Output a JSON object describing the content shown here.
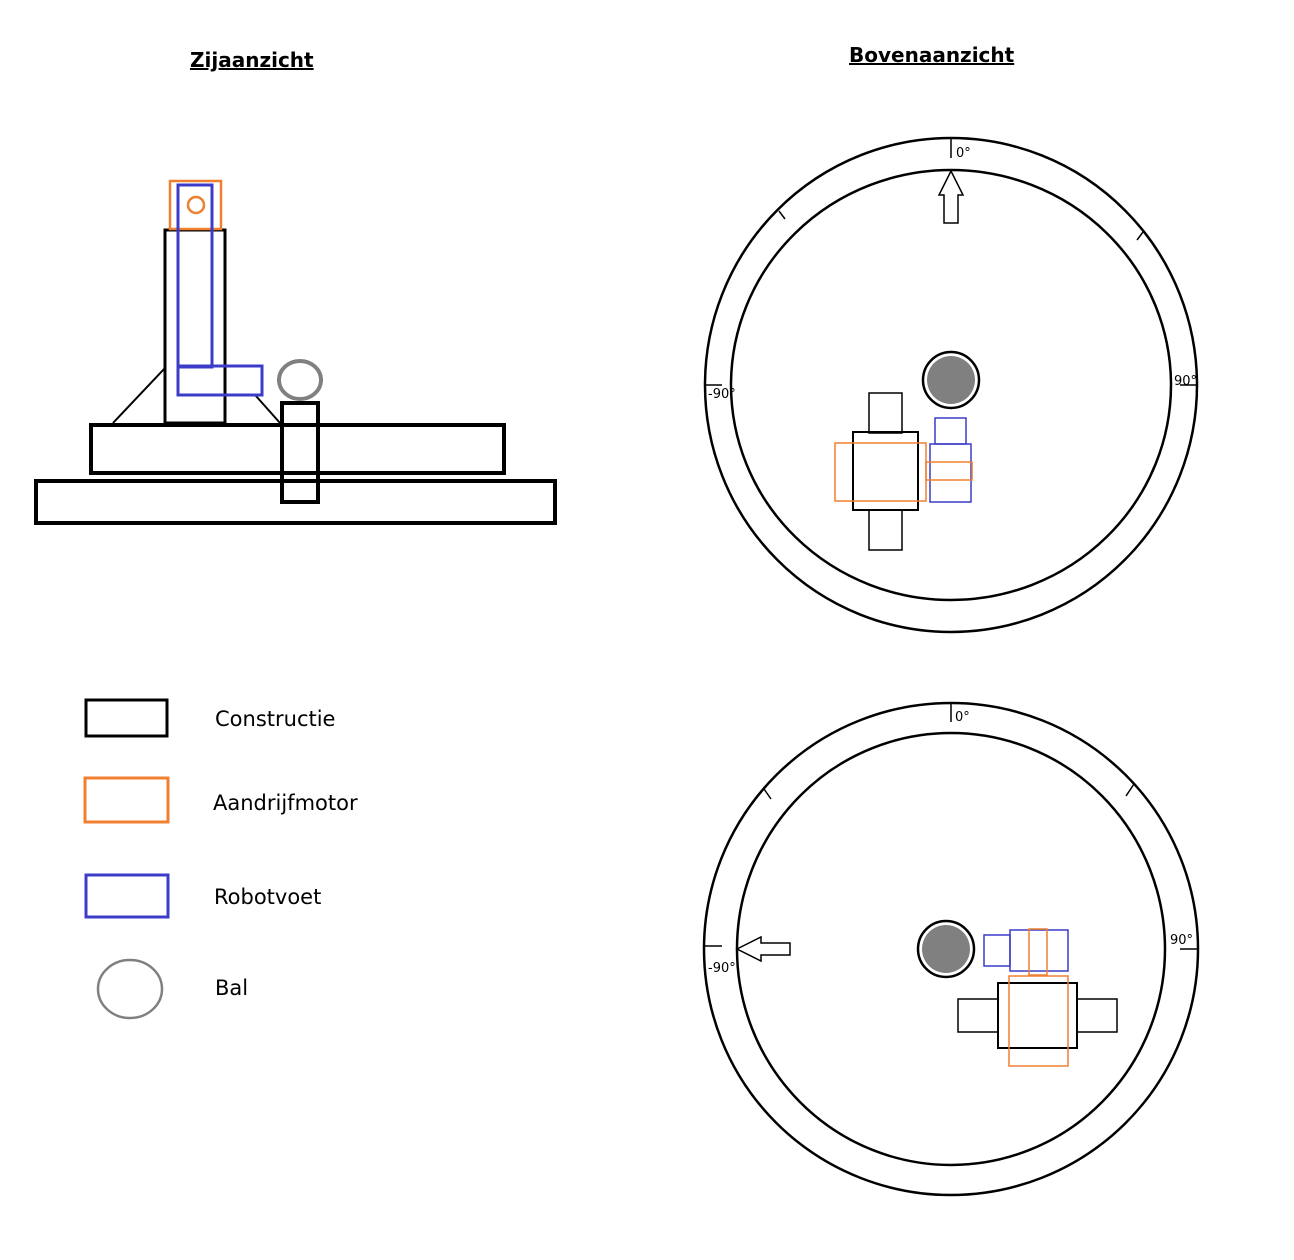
{
  "titles": {
    "side_view": "Zijaanzicht",
    "top_view": "Bovenaanzicht"
  },
  "legend": [
    {
      "label": "Constructie",
      "color": "#000000",
      "shape": "rectangle"
    },
    {
      "label": "Aandrijfmotor",
      "color": "#f08030",
      "shape": "rectangle"
    },
    {
      "label": "Robotvoet",
      "color": "#3c3cc8",
      "shape": "rectangle"
    },
    {
      "label": "Bal",
      "color": "#808080",
      "shape": "ellipse"
    }
  ],
  "top_views": [
    {
      "labels": {
        "zero": "0°",
        "minus90": "-90°",
        "plus90": "90°"
      },
      "arrow_direction": "up"
    },
    {
      "labels": {
        "zero": "0°",
        "minus90": "-90°",
        "plus90": "90°"
      },
      "arrow_direction": "left"
    }
  ],
  "colors": {
    "construction": "#000000",
    "motor": "#f08030",
    "foot": "#3c3cc8",
    "ball": "#808080"
  }
}
